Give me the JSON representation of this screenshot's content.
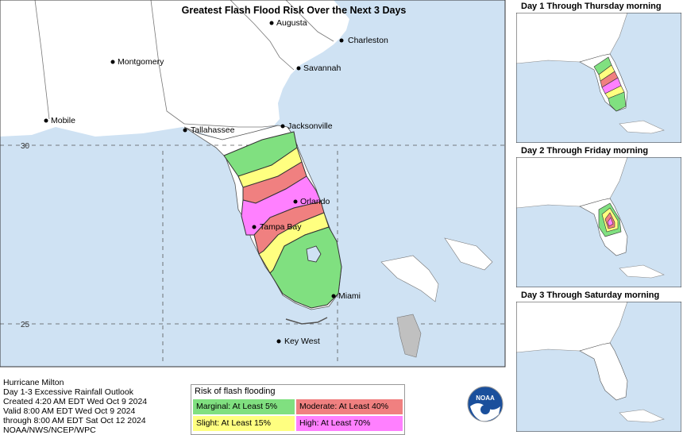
{
  "title": "Greatest Flash Flood Risk Over the Next 3 Days",
  "cities": [
    {
      "name": "Augusta"
    },
    {
      "name": "Charleston"
    },
    {
      "name": "Montgomery"
    },
    {
      "name": "Savannah"
    },
    {
      "name": "Mobile"
    },
    {
      "name": "Tallahassee"
    },
    {
      "name": "Jacksonville"
    },
    {
      "name": "Orlando"
    },
    {
      "name": "Tampa Bay"
    },
    {
      "name": "Miami"
    },
    {
      "name": "Key West"
    }
  ],
  "latitudes": [
    "30",
    "25"
  ],
  "info": {
    "line1": "Hurricane Milton",
    "line2": "Day 1-3 Excessive Rainfall Outlook",
    "line3": "Created 4:20 AM EDT Wed Oct 9 2024",
    "line4": "Valid 8:00 AM EDT Wed Oct 9 2024",
    "line5": "through 8:00 AM EDT Sat Oct 12 2024",
    "line6": "NOAA/NWS/NCEP/WPC"
  },
  "legend": {
    "title": "Risk of flash flooding",
    "marginal": "Marginal: At Least 5%",
    "slight": "Slight: At Least 15%",
    "moderate": "Moderate: At Least 40%",
    "high": "High: At Least 70%"
  },
  "logo_text": "NOAA",
  "panels": [
    {
      "title": "Day 1 Through Thursday morning"
    },
    {
      "title": "Day 2 Through Friday morning"
    },
    {
      "title": "Day 3 Through Saturday morning"
    }
  ],
  "colors": {
    "water": "#cfe2f3",
    "land": "#ffffff",
    "marginal": "#80e080",
    "slight": "#ffff80",
    "moderate": "#f08080",
    "high": "#ff80ff"
  }
}
